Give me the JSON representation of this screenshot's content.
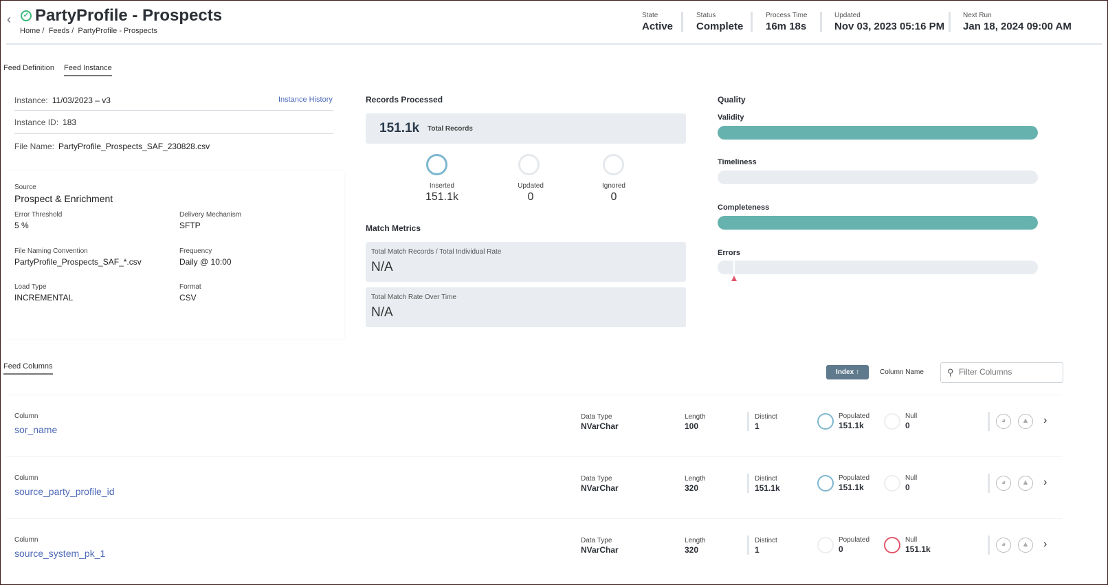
{
  "header": {
    "title": "PartyProfile - Prospects",
    "breadcrumb": [
      "Home /",
      "Feeds /",
      "PartyProfile - Prospects"
    ],
    "stats": [
      {
        "label": "State",
        "value": "Active"
      },
      {
        "label": "Status",
        "value": "Complete"
      },
      {
        "label": "Process Time",
        "value": "16m 18s"
      },
      {
        "label": "Updated",
        "value": "Nov 03, 2023 05:16 PM"
      },
      {
        "label": "Next Run",
        "value": "Jan 18, 2024 09:00 AM"
      }
    ]
  },
  "tabs": [
    "Feed Definition",
    "Feed Instance"
  ],
  "instance": {
    "instance_label": "Instance:",
    "instance_value": "11/03/2023 – v3",
    "history_link": "Instance History",
    "id_label": "Instance ID:",
    "id_value": "183",
    "file_label": "File Name:",
    "file_value": "PartyProfile_Prospects_SAF_230828.csv"
  },
  "source": {
    "source_label": "Source",
    "source_value": "Prospect & Enrichment",
    "fields": [
      {
        "label": "Error Threshold",
        "value": "5 %"
      },
      {
        "label": "Delivery Mechanism",
        "value": "SFTP"
      },
      {
        "label": "File Naming Convention",
        "value": "PartyProfile_Prospects_SAF_*.csv"
      },
      {
        "label": "Frequency",
        "value": "Daily @ 10:00"
      },
      {
        "label": "Load Type",
        "value": "INCREMENTAL"
      },
      {
        "label": "Format",
        "value": "CSV"
      }
    ]
  },
  "records": {
    "title": "Records Processed",
    "total": "151.1k",
    "total_label": "Total Records",
    "counts": [
      {
        "label": "Inserted",
        "value": "151.1k"
      },
      {
        "label": "Updated",
        "value": "0"
      },
      {
        "label": "Ignored",
        "value": "0"
      }
    ]
  },
  "match": {
    "title": "Match Metrics",
    "cards": [
      {
        "label": "Total Match Records / Total Individual Rate",
        "value": "N/A"
      },
      {
        "label": "Total Match Rate Over Time",
        "value": "N/A"
      }
    ]
  },
  "quality": {
    "title": "Quality",
    "bars": [
      {
        "label": "Validity",
        "percent": 100
      },
      {
        "label": "Timeliness",
        "percent": 0
      },
      {
        "label": "Completeness",
        "percent": 100
      },
      {
        "label": "Errors",
        "percent": 0,
        "threshold_percent": 5
      }
    ],
    "fill_color": "#66b2ae",
    "threshold_color": "#e0566b"
  },
  "columns": {
    "title": "Feed Columns",
    "sort_button": "Index",
    "sort_alt": "Column Name",
    "filter_placeholder": "Filter Columns",
    "labels": {
      "column": "Column",
      "data_type": "Data Type",
      "length": "Length",
      "distinct": "Distinct",
      "populated": "Populated",
      "null": "Null"
    },
    "rows": [
      {
        "name": "sor_name",
        "data_type": "NVarChar",
        "length": "100",
        "distinct": "1",
        "populated": "151.1k",
        "null": "0"
      },
      {
        "name": "source_party_profile_id",
        "data_type": "NVarChar",
        "length": "320",
        "distinct": "151.1k",
        "populated": "151.1k",
        "null": "0"
      },
      {
        "name": "source_system_pk_1",
        "data_type": "NVarChar",
        "length": "320",
        "distinct": "1",
        "populated": "0",
        "null": "151.1k"
      }
    ]
  }
}
